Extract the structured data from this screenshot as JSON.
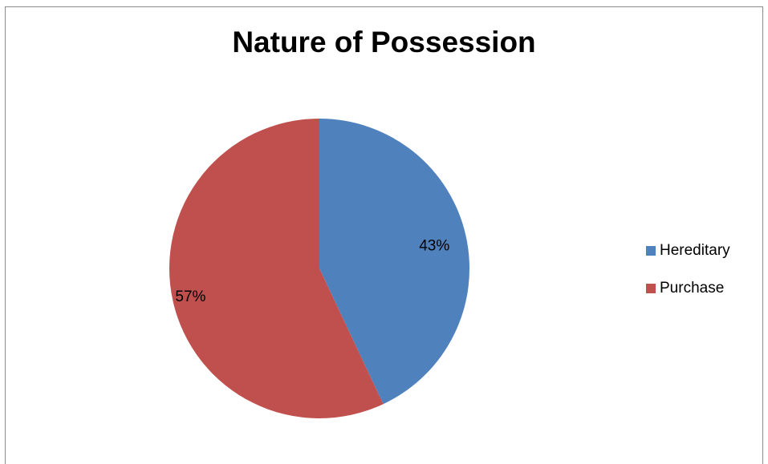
{
  "chart_data": {
    "type": "pie",
    "title": "Nature of Possession",
    "categories": [
      "Hereditary",
      "Purchase"
    ],
    "values": [
      43,
      57
    ],
    "labels": [
      "43%",
      "57%"
    ],
    "colors": [
      "#4F81BD",
      "#C0504D"
    ],
    "legend_position": "right"
  }
}
